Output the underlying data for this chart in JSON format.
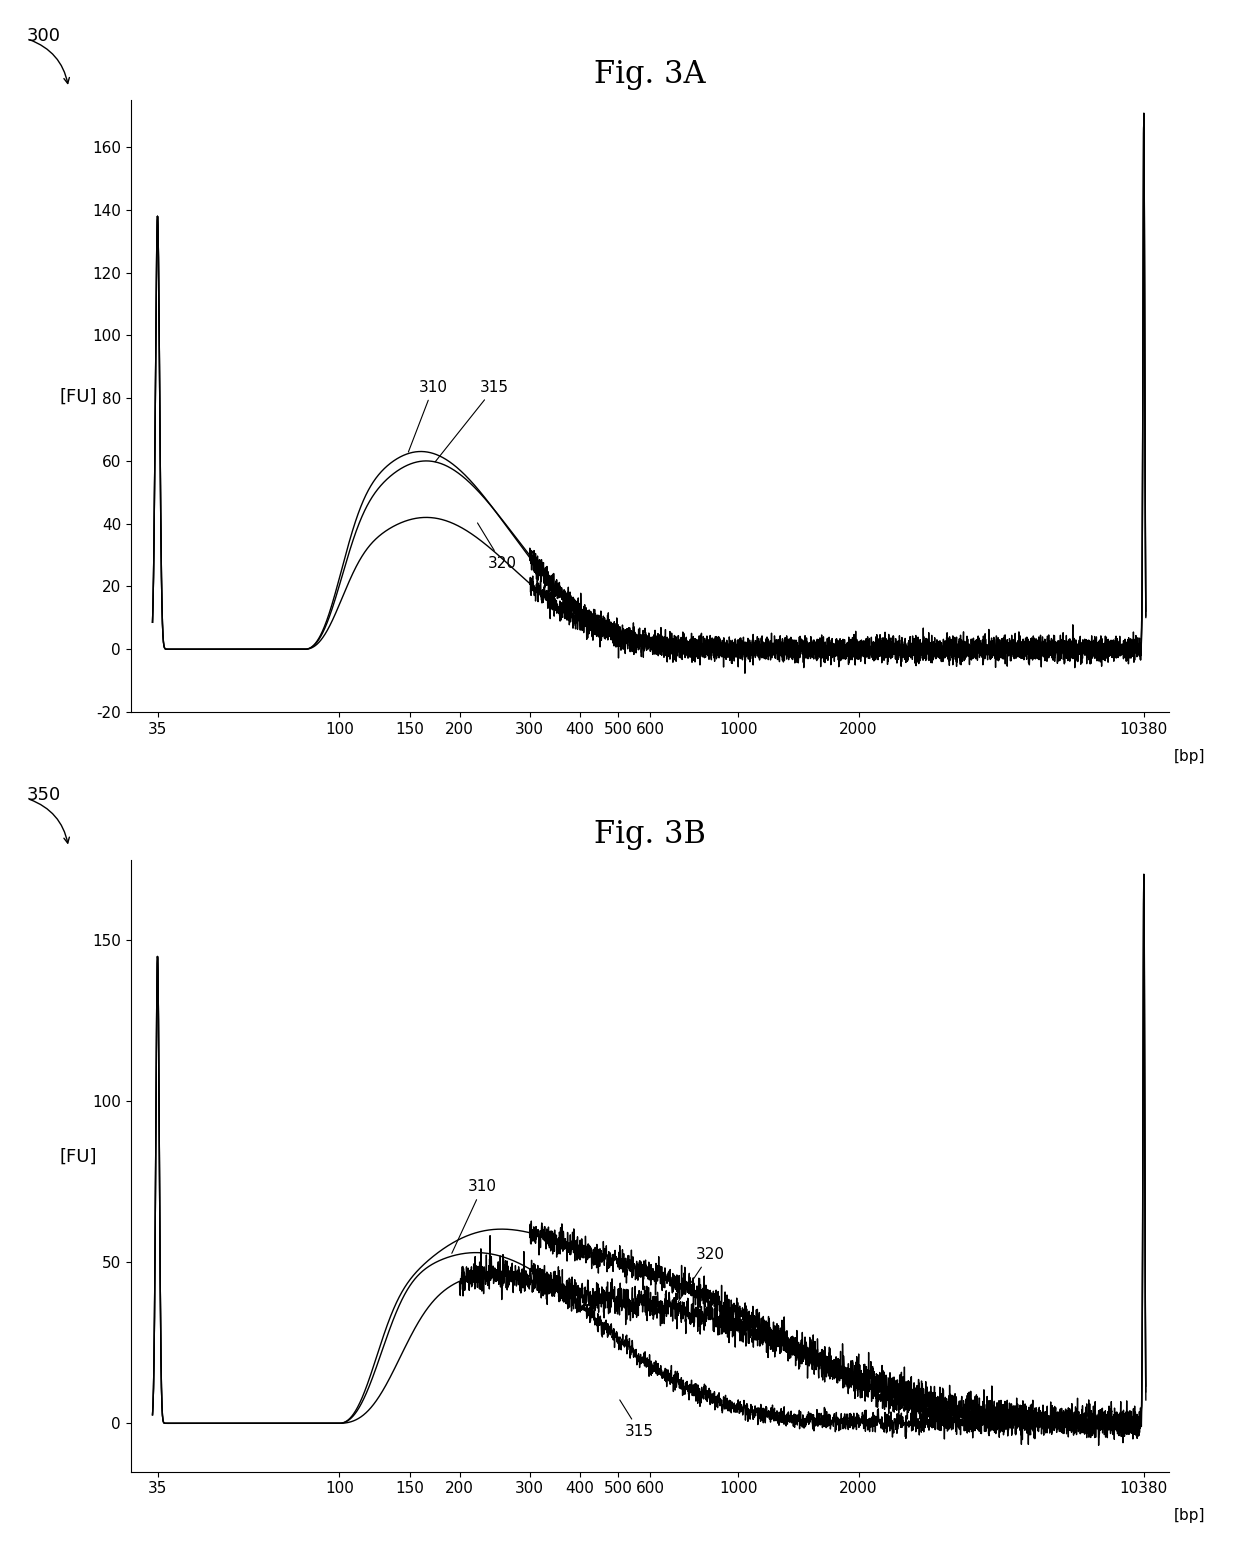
{
  "fig3a": {
    "ylim": [
      -20,
      175
    ],
    "yticks": [
      -20,
      0,
      20,
      40,
      60,
      80,
      100,
      120,
      140,
      160
    ],
    "ylabel": "[FU]",
    "title": "Fig. 3A",
    "label_300": "300",
    "label_310": "310",
    "label_315": "315",
    "label_320": "320"
  },
  "fig3b": {
    "ylim": [
      -15,
      175
    ],
    "yticks": [
      0,
      50,
      100,
      150
    ],
    "ylabel": "[FU]",
    "title": "Fig. 3B",
    "label_350": "350",
    "label_310": "310",
    "label_315": "315",
    "label_320": "320"
  },
  "bp_ticks": [
    35,
    100,
    150,
    200,
    300,
    400,
    500,
    600,
    1000,
    2000,
    10380
  ],
  "bp_labels": [
    "35",
    "100",
    "150",
    "200",
    "300",
    "400",
    "500",
    "600",
    "1000",
    "2000",
    "10380"
  ],
  "line_color": "#000000",
  "background_color": "#ffffff"
}
